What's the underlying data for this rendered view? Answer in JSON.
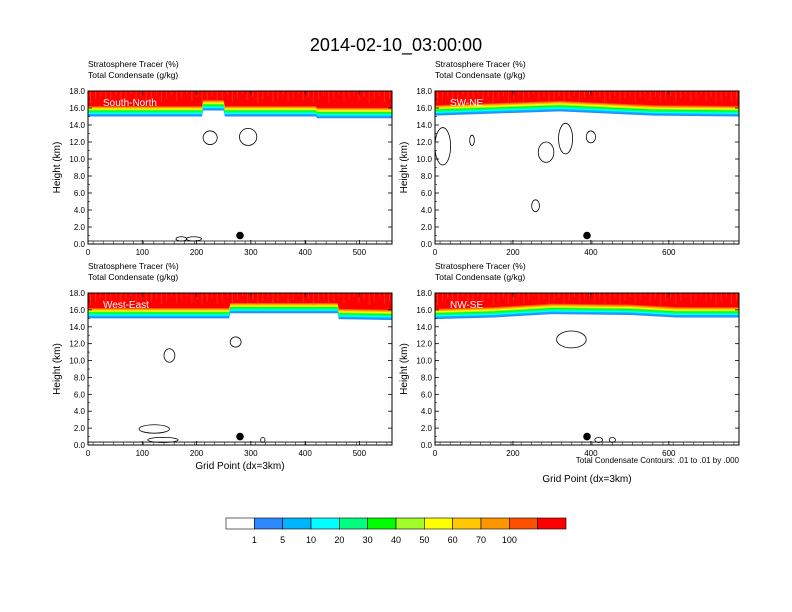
{
  "chart_data": {
    "type": "heatmap",
    "title": "2014-02-10_03:00:00",
    "colors": {
      "background": "#ffffff",
      "red": "#ff0000",
      "orange_red": "#ff5000",
      "orange": "#ff9600",
      "gold": "#ffc800",
      "yellow": "#ffff00",
      "yellow_green": "#a0ff28",
      "green": "#00ff00",
      "spring_green": "#00ff80",
      "cyan": "#00ffff",
      "sky_blue": "#00b4ff",
      "blue": "#2d87ff"
    },
    "panels": [
      {
        "name": "South-North",
        "label": "South-North",
        "header": [
          "Stratosphere Tracer   (%)",
          "Total Condensate   (g/kg)"
        ],
        "ylabel": "Height (km)",
        "xlabel": "",
        "xlim": [
          0,
          560
        ],
        "ylim": [
          0,
          18
        ],
        "xticks": [
          "0",
          "100",
          "200",
          "300",
          "400",
          "500"
        ],
        "xtick_values": [
          0,
          100,
          200,
          300,
          400,
          500
        ],
        "yticks": [
          "0.0",
          "2.0",
          "4.0",
          "6.0",
          "8.0",
          "10.0",
          "12.0",
          "14.0",
          "16.0",
          "18.0"
        ],
        "marker": {
          "x": 280,
          "y": 1.0
        },
        "tropopause": [
          [
            0,
            15.6
          ],
          [
            210,
            15.6
          ],
          [
            212,
            16.3
          ],
          [
            250,
            16.3
          ],
          [
            252,
            15.6
          ],
          [
            420,
            15.6
          ],
          [
            422,
            15.4
          ],
          [
            560,
            15.4
          ]
        ],
        "condensate_contours": [
          {
            "x": 225,
            "y": 12.5,
            "rx": 13,
            "ry": 0.8
          },
          {
            "x": 295,
            "y": 12.6,
            "rx": 16,
            "ry": 1.0
          },
          {
            "x": 172,
            "y": 0.6,
            "rx": 10,
            "ry": 0.25
          },
          {
            "x": 195,
            "y": 0.6,
            "rx": 14,
            "ry": 0.25
          }
        ]
      },
      {
        "name": "SW-NE",
        "label": "SW-NE",
        "header": [
          "Stratosphere Tracer   (%)",
          "Total Condensate   (g/kg)"
        ],
        "ylabel": "Height (km)",
        "xlabel": "",
        "xlim": [
          0,
          780
        ],
        "ylim": [
          0,
          18
        ],
        "xticks": [
          "0",
          "200",
          "400",
          "600"
        ],
        "xtick_values": [
          0,
          200,
          400,
          600
        ],
        "yticks": [
          "0.0",
          "2.0",
          "4.0",
          "6.0",
          "8.0",
          "10.0",
          "12.0",
          "14.0",
          "16.0",
          "18.0"
        ],
        "marker": {
          "x": 390,
          "y": 1.0
        },
        "tropopause": [
          [
            0,
            15.7
          ],
          [
            120,
            15.9
          ],
          [
            320,
            16.2
          ],
          [
            420,
            16.0
          ],
          [
            560,
            15.7
          ],
          [
            780,
            15.6
          ]
        ],
        "condensate_contours": [
          {
            "x": 20,
            "y": 11.5,
            "rx": 20,
            "ry": 2.2
          },
          {
            "x": 95,
            "y": 12.2,
            "rx": 6,
            "ry": 0.6
          },
          {
            "x": 285,
            "y": 10.8,
            "rx": 20,
            "ry": 1.2
          },
          {
            "x": 335,
            "y": 12.4,
            "rx": 18,
            "ry": 1.8
          },
          {
            "x": 400,
            "y": 12.6,
            "rx": 12,
            "ry": 0.7
          },
          {
            "x": 258,
            "y": 4.5,
            "rx": 10,
            "ry": 0.7
          }
        ]
      },
      {
        "name": "West-East",
        "label": "West-East",
        "header": [
          "Stratosphere Tracer   (%)",
          "Total Condensate   (g/kg)"
        ],
        "ylabel": "Height (km)",
        "xlabel": "Grid Point (dx=3km)",
        "xlim": [
          0,
          560
        ],
        "ylim": [
          0,
          18
        ],
        "xticks": [
          "0",
          "100",
          "200",
          "300",
          "400",
          "500"
        ],
        "xtick_values": [
          0,
          100,
          200,
          300,
          400,
          500
        ],
        "yticks": [
          "0.0",
          "2.0",
          "4.0",
          "6.0",
          "8.0",
          "10.0",
          "12.0",
          "14.0",
          "16.0",
          "18.0"
        ],
        "marker": {
          "x": 280,
          "y": 1.0
        },
        "tropopause": [
          [
            0,
            15.6
          ],
          [
            260,
            15.6
          ],
          [
            262,
            16.2
          ],
          [
            460,
            16.2
          ],
          [
            462,
            15.5
          ],
          [
            560,
            15.4
          ]
        ],
        "condensate_contours": [
          {
            "x": 150,
            "y": 10.6,
            "rx": 10,
            "ry": 0.8
          },
          {
            "x": 272,
            "y": 12.2,
            "rx": 10,
            "ry": 0.6
          },
          {
            "x": 122,
            "y": 1.9,
            "rx": 28,
            "ry": 0.5
          },
          {
            "x": 138,
            "y": 0.6,
            "rx": 28,
            "ry": 0.3
          },
          {
            "x": 322,
            "y": 0.6,
            "rx": 4,
            "ry": 0.3
          }
        ]
      },
      {
        "name": "NW-SE",
        "label": "NW-SE",
        "header": [
          "Stratosphere Tracer   (%)",
          "Total Condensate   (g/kg)"
        ],
        "ylabel": "Height (km)",
        "xlabel": "Grid Point (dx=3km)",
        "xlim": [
          0,
          780
        ],
        "ylim": [
          0,
          18
        ],
        "xticks": [
          "0",
          "200",
          "400",
          "600"
        ],
        "xtick_values": [
          0,
          200,
          400,
          600
        ],
        "yticks": [
          "0.0",
          "2.0",
          "4.0",
          "6.0",
          "8.0",
          "10.0",
          "12.0",
          "14.0",
          "16.0",
          "18.0"
        ],
        "marker": {
          "x": 390,
          "y": 1.0
        },
        "tropopause": [
          [
            0,
            15.5
          ],
          [
            150,
            15.7
          ],
          [
            300,
            16.1
          ],
          [
            500,
            16.0
          ],
          [
            620,
            15.7
          ],
          [
            780,
            15.7
          ]
        ],
        "condensate_contours": [
          {
            "x": 350,
            "y": 12.5,
            "rx": 38,
            "ry": 1.0
          },
          {
            "x": 420,
            "y": 0.6,
            "rx": 10,
            "ry": 0.3
          },
          {
            "x": 455,
            "y": 0.6,
            "rx": 8,
            "ry": 0.3
          }
        ]
      }
    ],
    "contour_note": "Total Condensate Contours: .01 to .01 by .000",
    "colorbar": {
      "labels": [
        "1",
        "5",
        "10",
        "20",
        "30",
        "40",
        "50",
        "60",
        "70",
        "100"
      ],
      "colors": [
        "#ffffff",
        "#2d87ff",
        "#00b4ff",
        "#00ffff",
        "#00ff80",
        "#00ff00",
        "#a0ff28",
        "#ffff00",
        "#ffc800",
        "#ff9600",
        "#ff5000",
        "#ff0000"
      ]
    }
  }
}
